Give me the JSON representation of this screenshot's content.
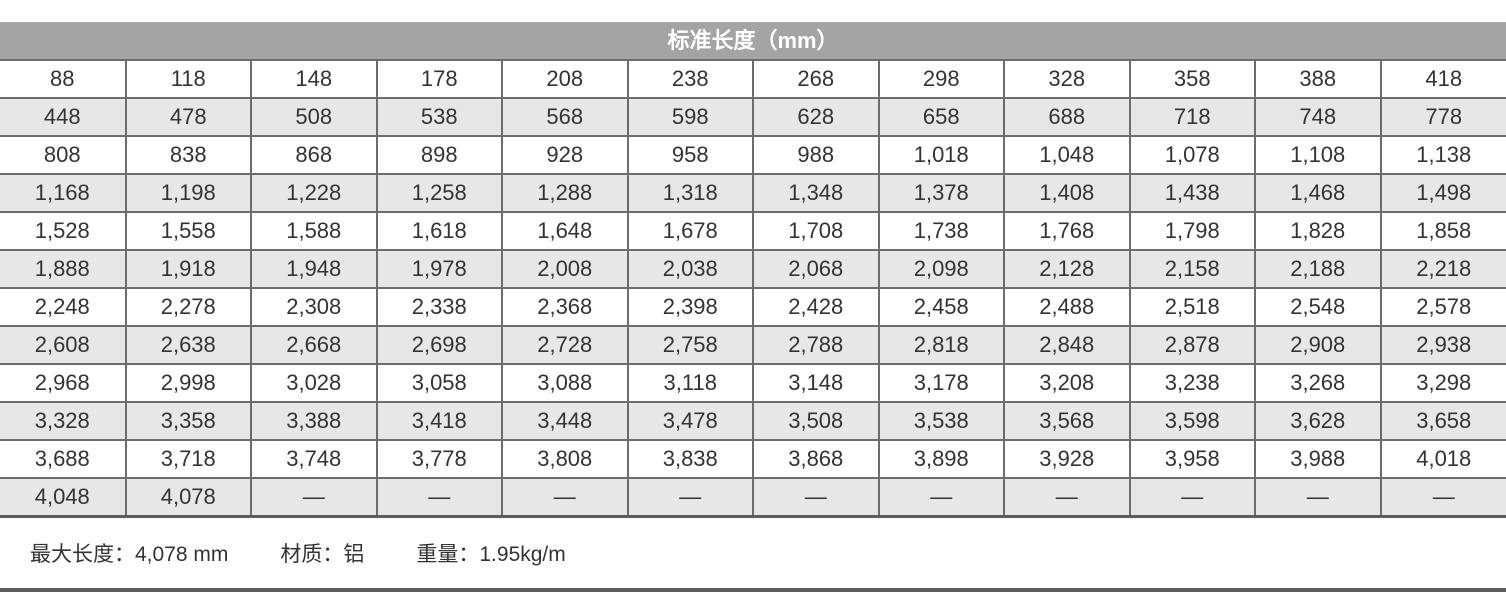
{
  "table": {
    "title": "标准长度（mm）",
    "rows": [
      [
        "88",
        "118",
        "148",
        "178",
        "208",
        "238",
        "268",
        "298",
        "328",
        "358",
        "388",
        "418"
      ],
      [
        "448",
        "478",
        "508",
        "538",
        "568",
        "598",
        "628",
        "658",
        "688",
        "718",
        "748",
        "778"
      ],
      [
        "808",
        "838",
        "868",
        "898",
        "928",
        "958",
        "988",
        "1,018",
        "1,048",
        "1,078",
        "1,108",
        "1,138"
      ],
      [
        "1,168",
        "1,198",
        "1,228",
        "1,258",
        "1,288",
        "1,318",
        "1,348",
        "1,378",
        "1,408",
        "1,438",
        "1,468",
        "1,498"
      ],
      [
        "1,528",
        "1,558",
        "1,588",
        "1,618",
        "1,648",
        "1,678",
        "1,708",
        "1,738",
        "1,768",
        "1,798",
        "1,828",
        "1,858"
      ],
      [
        "1,888",
        "1,918",
        "1,948",
        "1,978",
        "2,008",
        "2,038",
        "2,068",
        "2,098",
        "2,128",
        "2,158",
        "2,188",
        "2,218"
      ],
      [
        "2,248",
        "2,278",
        "2,308",
        "2,338",
        "2,368",
        "2,398",
        "2,428",
        "2,458",
        "2,488",
        "2,518",
        "2,548",
        "2,578"
      ],
      [
        "2,608",
        "2,638",
        "2,668",
        "2,698",
        "2,728",
        "2,758",
        "2,788",
        "2,818",
        "2,848",
        "2,878",
        "2,908",
        "2,938"
      ],
      [
        "2,968",
        "2,998",
        "3,028",
        "3,058",
        "3,088",
        "3,118",
        "3,148",
        "3,178",
        "3,208",
        "3,238",
        "3,268",
        "3,298"
      ],
      [
        "3,328",
        "3,358",
        "3,388",
        "3,418",
        "3,448",
        "3,478",
        "3,508",
        "3,538",
        "3,568",
        "3,598",
        "3,628",
        "3,658"
      ],
      [
        "3,688",
        "3,718",
        "3,748",
        "3,778",
        "3,808",
        "3,838",
        "3,868",
        "3,898",
        "3,928",
        "3,958",
        "3,988",
        "4,018"
      ],
      [
        "4,048",
        "4,078",
        "—",
        "—",
        "—",
        "—",
        "—",
        "—",
        "—",
        "—",
        "—",
        "—"
      ]
    ]
  },
  "footer": [
    "最大长度：4,078 mm",
    "材质：铝",
    "重量：1.95kg/m"
  ]
}
